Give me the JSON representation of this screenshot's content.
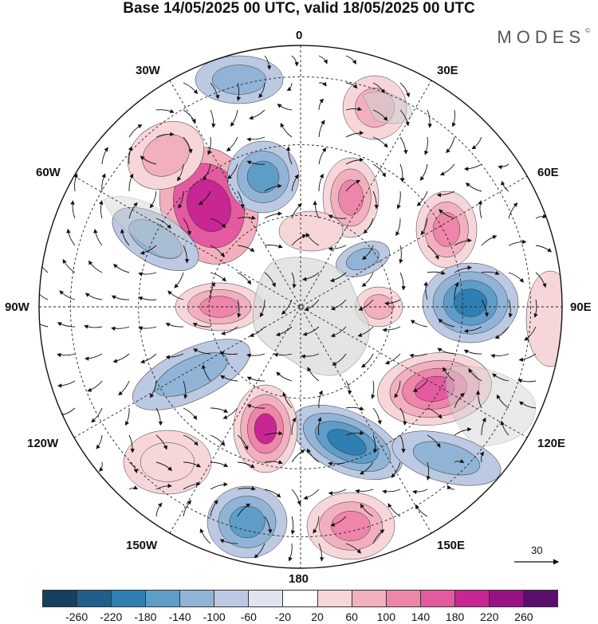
{
  "title": "Base 14/05/2025 00 UTC, valid 18/05/2025 00 UTC",
  "brand": "MODES",
  "brand_mark": "©",
  "map_labels": {
    "top": "0",
    "bottom": "180",
    "left": "90W",
    "right": "90E",
    "nw1": "30W",
    "nw2": "60W",
    "ne1": "30E",
    "ne2": "60E",
    "sw1": "120W",
    "sw2": "150W",
    "se1": "120E",
    "se2": "150E"
  },
  "reference_vector": "30",
  "colorbar": {
    "colors": [
      "#16405f",
      "#1f5f8b",
      "#2f7fb2",
      "#5e9dc8",
      "#91b4d6",
      "#bcc9e2",
      "#e2e3f0",
      "#ffffff",
      "#f7d6da",
      "#f2b0bf",
      "#ee86aa",
      "#e45aa0",
      "#c82692",
      "#981284",
      "#5a0f6e"
    ],
    "ticks": [
      "-260",
      "-220",
      "-180",
      "-140",
      "-100",
      "-60",
      "-20",
      "20",
      "60",
      "100",
      "140",
      "180",
      "220",
      "260"
    ]
  }
}
